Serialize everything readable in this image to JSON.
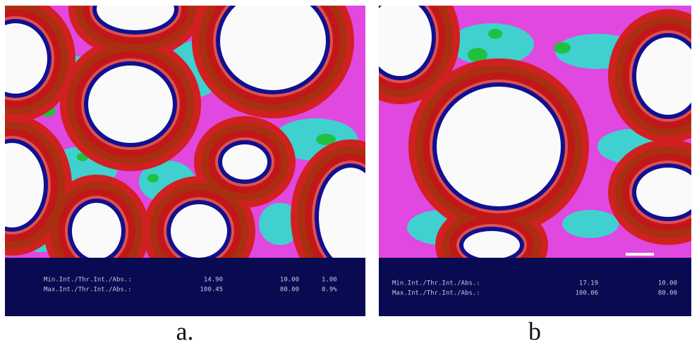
{
  "panels": [
    {
      "label": "a.",
      "stats": [
        {
          "name": "Min.Int./Thr.Int./Abs.:",
          "values": [
            "14.90",
            "10.00",
            "1.00"
          ]
        },
        {
          "name": "Max.Int./Thr.Int./Abs.:",
          "values": [
            "100.45",
            "80.00",
            "0.9%"
          ]
        }
      ]
    },
    {
      "label": "b",
      "stats": [
        {
          "name": "Min.Int./Thr.Int./Abs.:",
          "values": [
            "17.19",
            "10.00"
          ]
        },
        {
          "name": "Max.Int./Thr.Int./Abs.:",
          "values": [
            "100.06",
            "80.00"
          ]
        }
      ]
    }
  ]
}
